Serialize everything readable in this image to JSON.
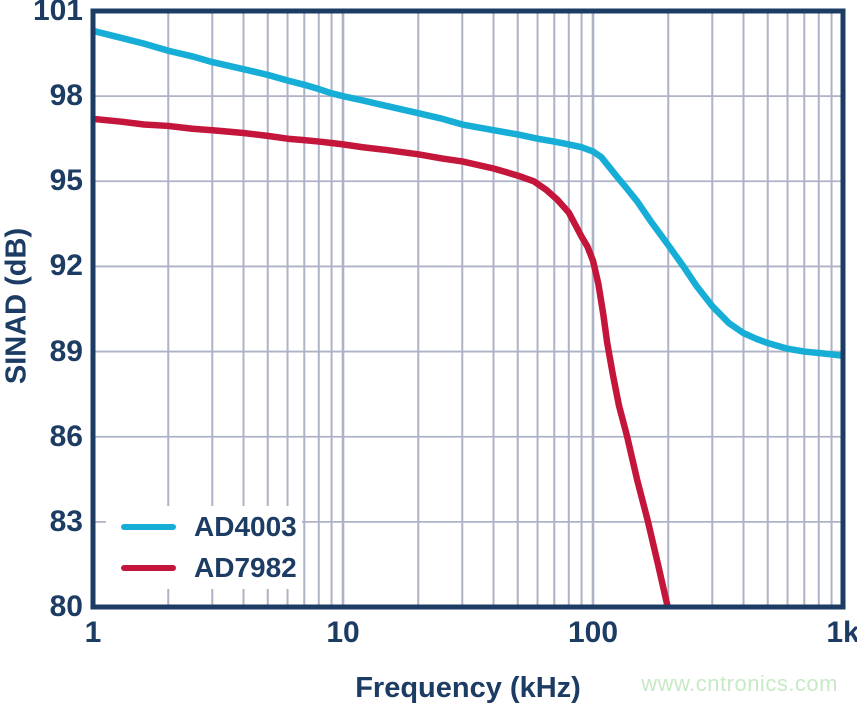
{
  "figure": {
    "watermark": "www.cntronics.com"
  },
  "chart_data": {
    "type": "line",
    "title": "",
    "xlabel": "Frequency (kHz)",
    "ylabel": "SINAD (dB)",
    "x_scale": "log",
    "xlim": [
      1,
      1000
    ],
    "ylim": [
      80,
      101
    ],
    "grid": {
      "x_minor_gridlines": true,
      "y_major_gridlines": true
    },
    "legend_position": "lower-left",
    "x_major_ticks": [
      {
        "value": 1,
        "label": "1"
      },
      {
        "value": 10,
        "label": "10"
      },
      {
        "value": 100,
        "label": "100"
      },
      {
        "value": 1000,
        "label": "1k"
      }
    ],
    "y_ticks": [
      {
        "value": 80,
        "label": "80"
      },
      {
        "value": 83,
        "label": "83"
      },
      {
        "value": 86,
        "label": "86"
      },
      {
        "value": 89,
        "label": "89"
      },
      {
        "value": 92,
        "label": "92"
      },
      {
        "value": 95,
        "label": "95"
      },
      {
        "value": 98,
        "label": "98"
      },
      {
        "value": 101,
        "label": "101"
      }
    ],
    "colors": {
      "axis": "#1C3C64",
      "grid": "#AEB2C6",
      "watermark": "#C8E9C5"
    },
    "series": [
      {
        "name": "AD4003",
        "color": "#16AED6",
        "points": [
          [
            1,
            100.3
          ],
          [
            1.3,
            100.05
          ],
          [
            1.6,
            99.85
          ],
          [
            2,
            99.6
          ],
          [
            2.5,
            99.4
          ],
          [
            3,
            99.2
          ],
          [
            4,
            98.95
          ],
          [
            5,
            98.75
          ],
          [
            6,
            98.55
          ],
          [
            7,
            98.4
          ],
          [
            8,
            98.25
          ],
          [
            9,
            98.1
          ],
          [
            10,
            98.0
          ],
          [
            12,
            97.85
          ],
          [
            15,
            97.65
          ],
          [
            20,
            97.4
          ],
          [
            25,
            97.2
          ],
          [
            30,
            97.0
          ],
          [
            40,
            96.8
          ],
          [
            50,
            96.65
          ],
          [
            60,
            96.5
          ],
          [
            70,
            96.4
          ],
          [
            80,
            96.3
          ],
          [
            90,
            96.2
          ],
          [
            100,
            96.05
          ],
          [
            108,
            95.85
          ],
          [
            115,
            95.55
          ],
          [
            125,
            95.15
          ],
          [
            135,
            94.8
          ],
          [
            150,
            94.3
          ],
          [
            170,
            93.6
          ],
          [
            200,
            92.75
          ],
          [
            230,
            92.0
          ],
          [
            260,
            91.3
          ],
          [
            300,
            90.6
          ],
          [
            350,
            90.0
          ],
          [
            400,
            89.65
          ],
          [
            450,
            89.45
          ],
          [
            500,
            89.3
          ],
          [
            600,
            89.1
          ],
          [
            700,
            89.0
          ],
          [
            800,
            88.95
          ],
          [
            900,
            88.9
          ],
          [
            1000,
            88.85
          ]
        ]
      },
      {
        "name": "AD7982",
        "color": "#C4163A",
        "points": [
          [
            1,
            97.2
          ],
          [
            1.3,
            97.1
          ],
          [
            1.6,
            97.0
          ],
          [
            2,
            96.95
          ],
          [
            2.5,
            96.85
          ],
          [
            3,
            96.8
          ],
          [
            4,
            96.7
          ],
          [
            5,
            96.6
          ],
          [
            6,
            96.5
          ],
          [
            7,
            96.45
          ],
          [
            8,
            96.4
          ],
          [
            9,
            96.35
          ],
          [
            10,
            96.3
          ],
          [
            12,
            96.2
          ],
          [
            15,
            96.1
          ],
          [
            20,
            95.95
          ],
          [
            25,
            95.8
          ],
          [
            30,
            95.7
          ],
          [
            40,
            95.45
          ],
          [
            50,
            95.2
          ],
          [
            58,
            95.0
          ],
          [
            65,
            94.7
          ],
          [
            72,
            94.35
          ],
          [
            80,
            93.9
          ],
          [
            90,
            93.05
          ],
          [
            95,
            92.7
          ],
          [
            100,
            92.2
          ],
          [
            105,
            91.4
          ],
          [
            110,
            90.3
          ],
          [
            114,
            89.3
          ],
          [
            120,
            88.2
          ],
          [
            127,
            87.1
          ],
          [
            137,
            86.0
          ],
          [
            150,
            84.5
          ],
          [
            166,
            83.0
          ],
          [
            182,
            81.5
          ],
          [
            199,
            80.0
          ],
          [
            207,
            79.2
          ]
        ]
      }
    ]
  }
}
